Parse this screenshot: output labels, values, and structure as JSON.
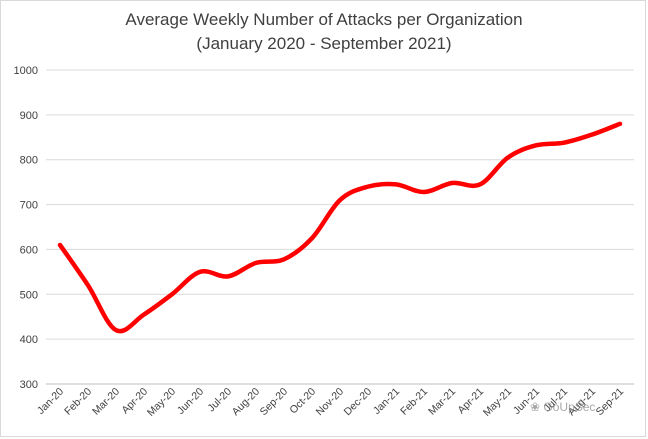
{
  "chart_data": {
    "type": "line",
    "title": [
      "Average Weekly Number of Attacks per Organization",
      "(January 2020 - September 2021)"
    ],
    "xlabel": "",
    "ylabel": "",
    "ylim": [
      300,
      1000
    ],
    "yticks": [
      300,
      400,
      500,
      600,
      700,
      800,
      900,
      1000
    ],
    "grid": true,
    "legend": "none",
    "colors": {
      "line": "#ff0000",
      "grid": "#d9d9d9",
      "text": "#404040"
    },
    "categories": [
      "Jan-20",
      "Feb-20",
      "Mar-20",
      "Apr-20",
      "May-20",
      "Jun-20",
      "Jul-20",
      "Aug-20",
      "Sep-20",
      "Oct-20",
      "Nov-20",
      "Dec-20",
      "Jan-21",
      "Feb-21",
      "Mar-21",
      "Apr-21",
      "May-21",
      "Jun-21",
      "Jul-21",
      "Aug-21",
      "Sep-21"
    ],
    "series": [
      {
        "values": [
          610,
          520,
          420,
          455,
          500,
          550,
          540,
          570,
          578,
          625,
          710,
          740,
          745,
          728,
          748,
          745,
          805,
          832,
          838,
          856,
          880
        ]
      }
    ]
  },
  "watermark": "GoUpSec"
}
